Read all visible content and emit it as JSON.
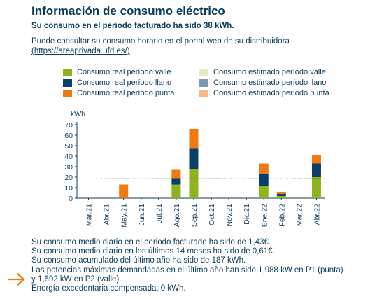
{
  "header": {
    "title": "Información de consumo eléctrico",
    "subtitle": "Su consumo en el periodo facturado ha sido 38 kWh.",
    "intro_text": "Puede consultar su consumo horario en el portal web de su distribuidora",
    "intro_link": "(https://areaprivada.ufd.es/)",
    "intro_end": "."
  },
  "legend": [
    {
      "label": "Consumo real período valle",
      "color": "#8fb31f"
    },
    {
      "label": "Consumo estimado período valle",
      "color": "#e4ecc6"
    },
    {
      "label": "Consumo real período llano",
      "color": "#0a3f6b"
    },
    {
      "label": "Consumo estimado período llano",
      "color": "#7d98ad"
    },
    {
      "label": "Consumo real período punta",
      "color": "#ee7a10"
    },
    {
      "label": "Consumo estimado período punta",
      "color": "#f4b98a"
    }
  ],
  "chart_data": {
    "type": "bar",
    "stacked": true,
    "ylabel": "kWh",
    "ylim": [
      0,
      70
    ],
    "yticks": [
      0,
      10,
      20,
      30,
      40,
      50,
      60,
      70
    ],
    "categories": [
      "Mar.21",
      "Abr.21",
      "May.21",
      "Jun.21",
      "Jul.21",
      "Ago.21",
      "Sep.21",
      "Oct.21",
      "Nov.21",
      "Dic.21",
      "Ene.22",
      "Feb.22",
      "Mar.22",
      "Abr.22"
    ],
    "series": [
      {
        "name": "Consumo real período valle",
        "color": "#8fb31f",
        "values": [
          0,
          0,
          0,
          0,
          0,
          13,
          28,
          0,
          0,
          0,
          12,
          2,
          0,
          20
        ]
      },
      {
        "name": "Consumo real período llano",
        "color": "#0a3f6b",
        "values": [
          0,
          0,
          0,
          0,
          0,
          6,
          19,
          0,
          0,
          0,
          11,
          2,
          0,
          13
        ]
      },
      {
        "name": "Consumo real período punta",
        "color": "#ee7a10",
        "values": [
          0,
          0,
          13,
          0,
          0,
          8,
          19,
          0,
          0,
          0,
          10,
          2,
          0,
          8
        ]
      }
    ],
    "average_line": 18.5,
    "grid": false
  },
  "notes": [
    "Su consumo medio diario en el periodo facturado ha sido de 1,43€.",
    "Su consumo medio diario en los últimos 14 meses ha sido de 0,61€.",
    "Su consumo acumulado del último año ha sido de 187 kWh.",
    "Las potencias máximas demandadas en el último año han sido 1,988 kW en P1 (punta)",
    "y 1,692 kW en P2 (valle).",
    "Energía excedentaria compensada: 0 kWh."
  ],
  "arrow_color": "#ee7a10"
}
